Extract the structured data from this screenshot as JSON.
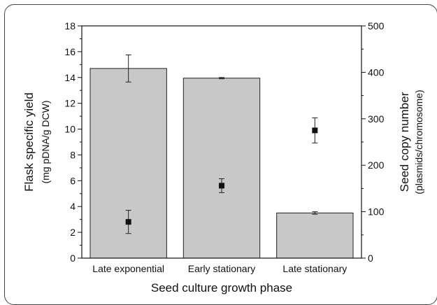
{
  "chart_data": {
    "type": "bar",
    "categories": [
      "Late exponential",
      "Early stationary",
      "Late stationary"
    ],
    "series": [
      {
        "values": [
          14.7,
          13.95,
          3.5
        ],
        "errors": [
          1.05,
          0.05,
          0.1
        ],
        "axis": "left",
        "kind": "bar",
        "color": "#c8c8c8"
      },
      {
        "values": [
          78,
          156,
          275
        ],
        "errors": [
          25,
          15,
          27
        ],
        "axis": "right",
        "kind": "scatter",
        "marker": "square",
        "color": "#111111"
      }
    ],
    "xlabel": "Seed culture growth phase",
    "ylabel": "Flask specific yield",
    "ylabel_unit": "(mg pDNA/g DCW)",
    "y2label": "Seed copy number",
    "y2label_unit": "(plasmids/chromosome)",
    "ylim": [
      0,
      18
    ],
    "y2lim": [
      0,
      500
    ],
    "yticks": [
      "0",
      "2",
      "4",
      "6",
      "8",
      "10",
      "12",
      "14",
      "16",
      "18"
    ],
    "y2ticks": [
      "0",
      "100",
      "200",
      "300",
      "400",
      "500"
    ]
  }
}
